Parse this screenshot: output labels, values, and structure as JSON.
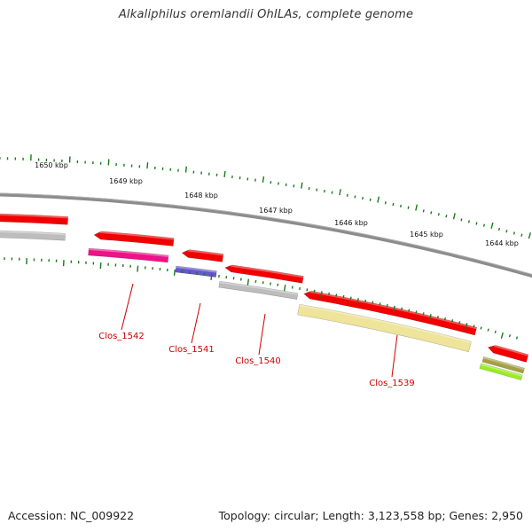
{
  "header": {
    "title": "Alkaliphilus oremlandii OhILAs, complete genome"
  },
  "footer": {
    "accession": "Accession: NC_009922",
    "summary": "Topology: circular; Length: 3,123,558 bp; Genes: 2,950"
  },
  "ruler": {
    "ticks": [
      "1650 kbp",
      "1649 kbp",
      "1648 kbp",
      "1647 kbp",
      "1646 kbp",
      "1645 kbp",
      "1644 kbp"
    ]
  },
  "genes": {
    "labels": [
      "Clos_1542",
      "Clos_1541",
      "Clos_1540",
      "Clos_1539"
    ]
  },
  "colors": {
    "backbone": "#8c8c8c",
    "cds_red": "#f20000",
    "magenta": "#ee1188",
    "purple": "#6655cc",
    "gray": "#bdbdbd",
    "khaki": "#eee49a",
    "olive": "#a6a040",
    "lime": "#99ee22",
    "tick_green": "#1a7a1a",
    "label_red": "#cc0000"
  }
}
